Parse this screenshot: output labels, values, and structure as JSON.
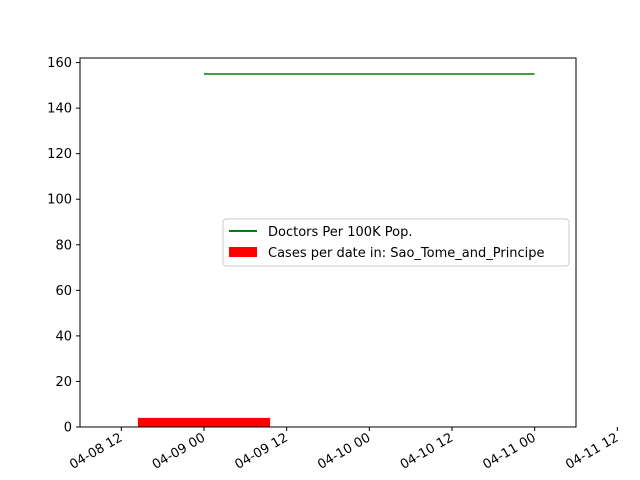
{
  "chart_data": {
    "type": "bar",
    "x_axis": {
      "kind": "datetime",
      "range": [
        "2020-04-08 06:00",
        "2020-04-11 06:00"
      ],
      "ticks": [
        "04-08 12",
        "04-09 00",
        "04-09 12",
        "04-10 00",
        "04-10 12",
        "04-11 00",
        "04-11 12"
      ]
    },
    "y_axis": {
      "range": [
        0,
        162
      ],
      "ticks": [
        "0",
        "20",
        "40",
        "60",
        "80",
        "100",
        "120",
        "140",
        "160"
      ]
    },
    "grid": false,
    "legend_position": "center-right",
    "series": [
      {
        "name": "Doctors Per 100K Pop.",
        "type": "line",
        "color": "#008000",
        "points": [
          {
            "x": "2020-04-09 00:00",
            "y": 155
          },
          {
            "x": "2020-04-11 00:00",
            "y": 155
          }
        ]
      },
      {
        "name": "Cases per date in: Sao_Tome_and_Principe",
        "type": "bar",
        "color": "#ff0000",
        "bars": [
          {
            "x": "2020-04-09 00:00",
            "y": 4
          }
        ]
      }
    ]
  }
}
